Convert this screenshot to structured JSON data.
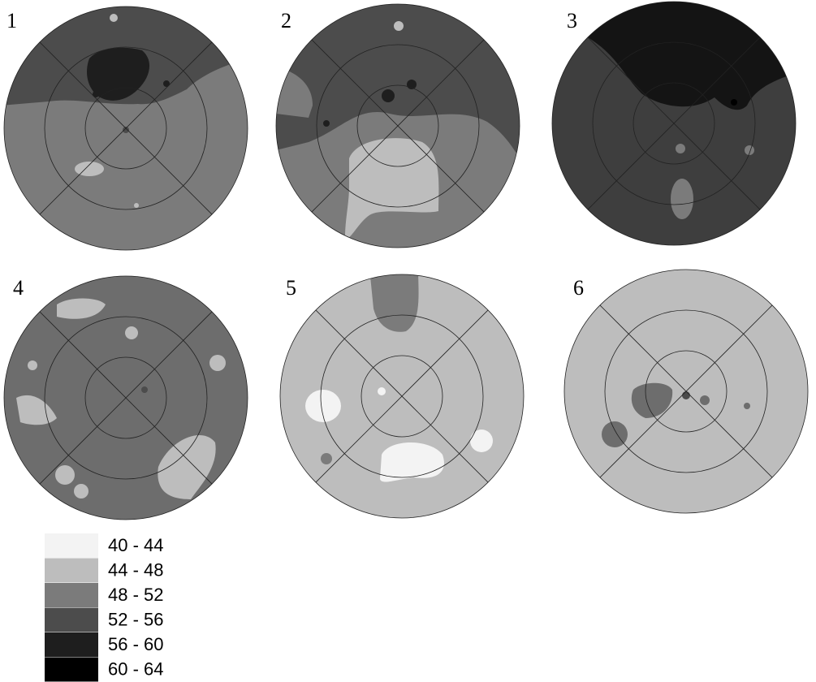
{
  "panels": [
    {
      "label": "1"
    },
    {
      "label": "2"
    },
    {
      "label": "3"
    },
    {
      "label": "4"
    },
    {
      "label": "5"
    },
    {
      "label": "6"
    }
  ],
  "legend": [
    {
      "label": "40 - 44",
      "color": "#f3f3f3"
    },
    {
      "label": "44 - 48",
      "color": "#bdbdbd"
    },
    {
      "label": "48 - 52",
      "color": "#7b7b7b"
    },
    {
      "label": "52 - 56",
      "color": "#4c4c4c"
    },
    {
      "label": "56 - 60",
      "color": "#1e1e1e"
    },
    {
      "label": "60 - 64",
      "color": "#000000"
    }
  ]
}
